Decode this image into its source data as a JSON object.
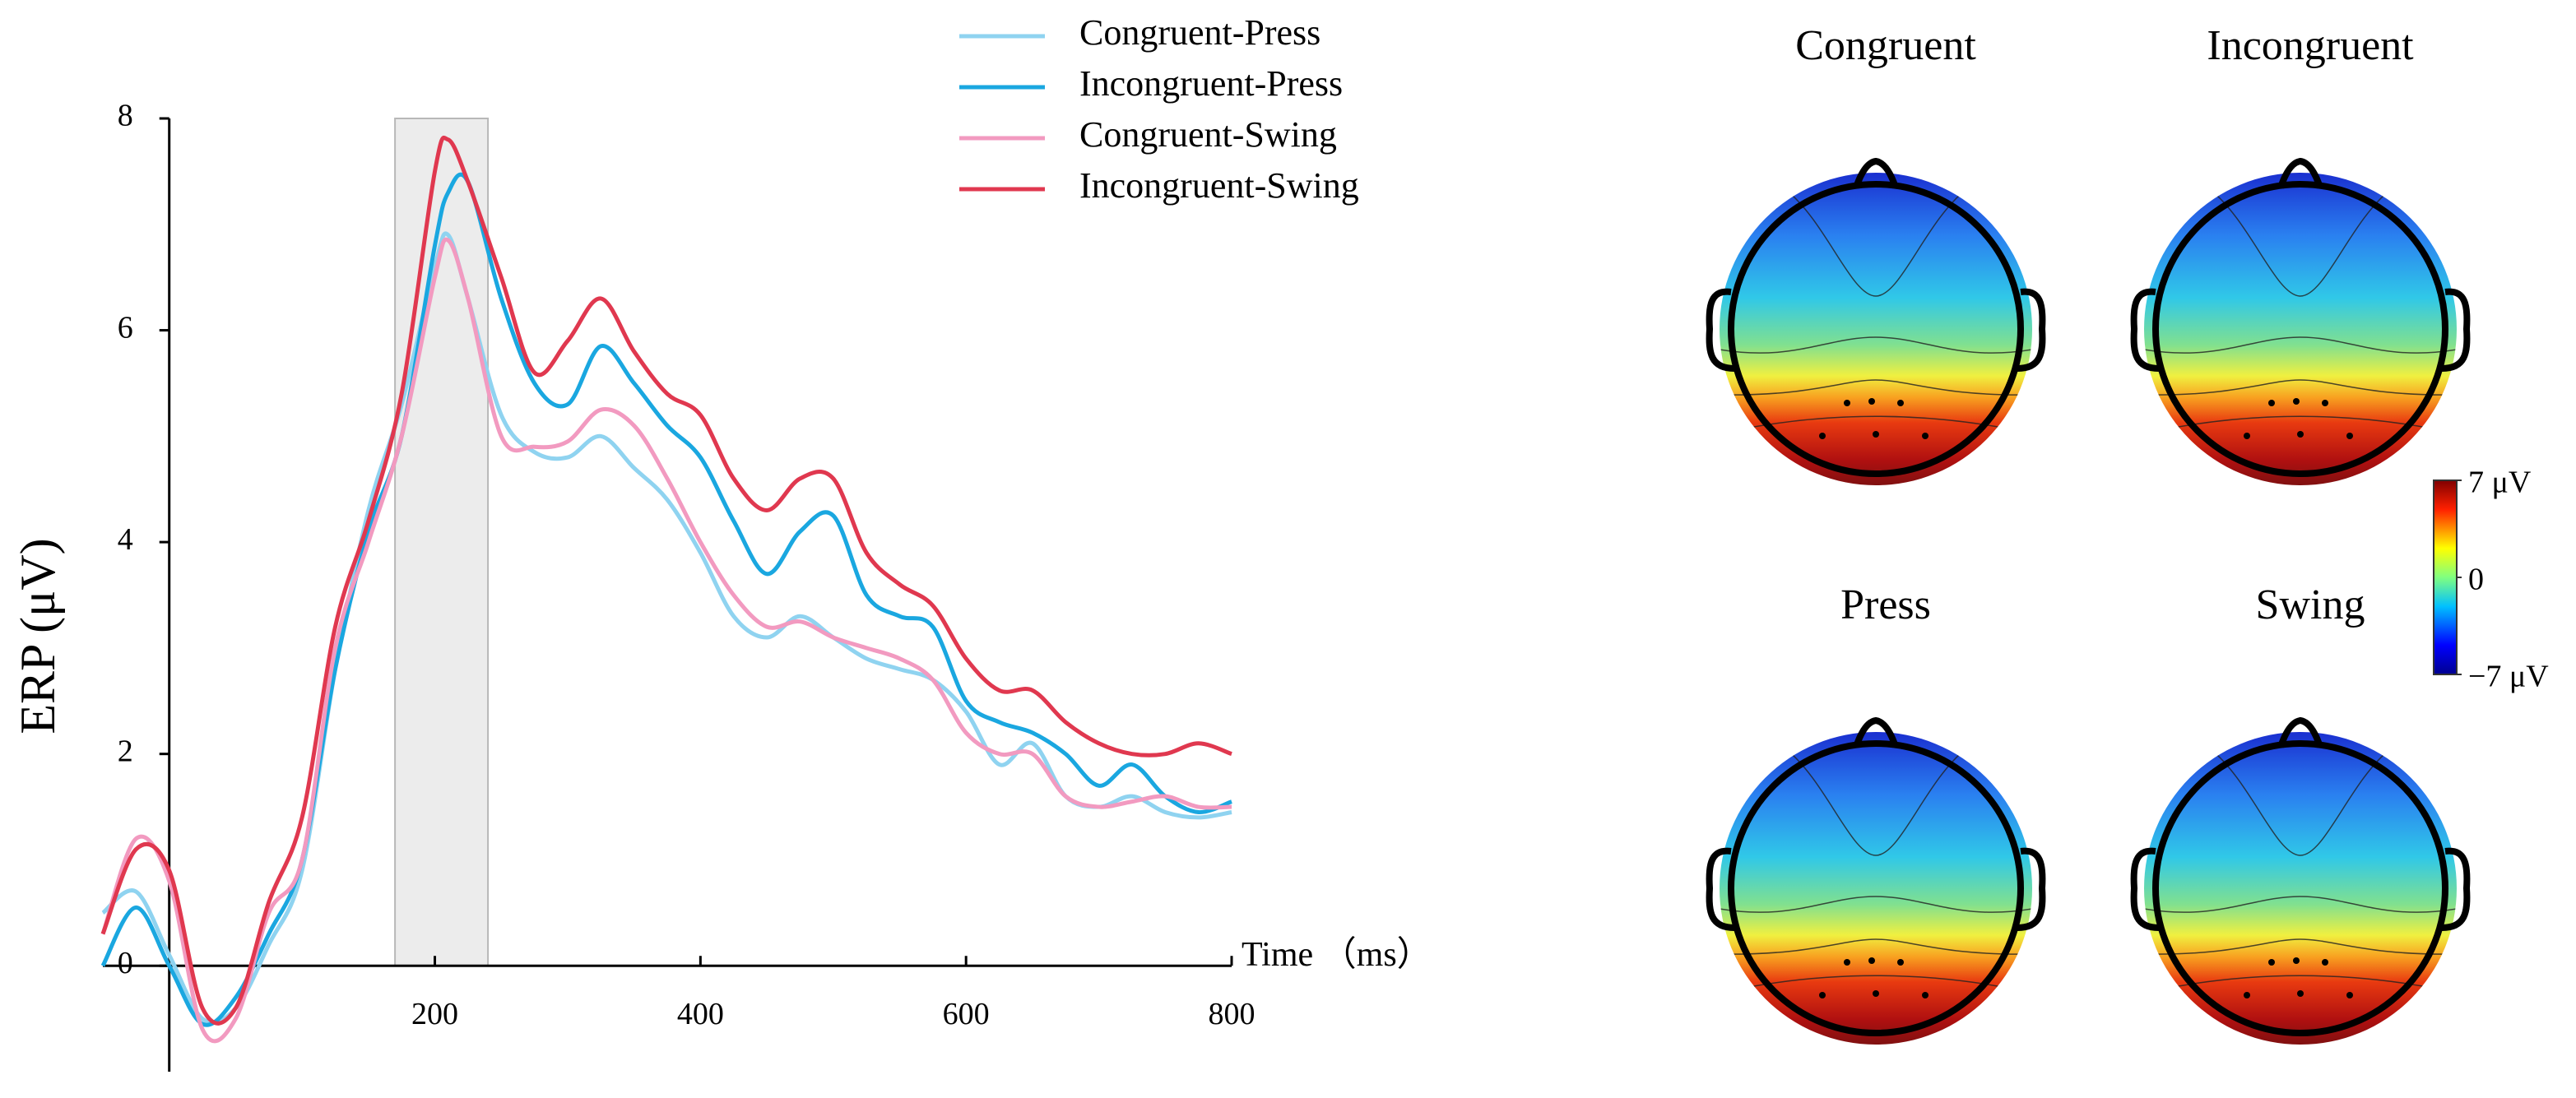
{
  "chart_data": [
    {
      "type": "line",
      "y_label": "ERP (μV)",
      "x_label": "Time （ms）",
      "x": [
        -50,
        -25,
        0,
        25,
        50,
        75,
        100,
        125,
        150,
        175,
        200,
        210,
        225,
        250,
        275,
        300,
        325,
        350,
        375,
        400,
        425,
        450,
        475,
        500,
        525,
        550,
        575,
        600,
        625,
        650,
        675,
        700,
        725,
        750,
        775,
        800
      ],
      "series": [
        {
          "name": "Congruent-Press",
          "color": "#8fd3f0",
          "values": [
            0.5,
            0.7,
            0.1,
            -0.5,
            -0.4,
            0.2,
            0.9,
            2.8,
            4.3,
            5.3,
            6.6,
            6.9,
            6.3,
            5.2,
            4.85,
            4.8,
            5.0,
            4.7,
            4.4,
            3.9,
            3.3,
            3.1,
            3.3,
            3.1,
            2.9,
            2.8,
            2.7,
            2.4,
            1.9,
            2.1,
            1.6,
            1.5,
            1.6,
            1.45,
            1.4,
            1.45
          ]
        },
        {
          "name": "Incongruent-Press",
          "color": "#1aa7e0",
          "values": [
            0.0,
            0.55,
            0.0,
            -0.55,
            -0.3,
            0.3,
            1.0,
            2.8,
            4.1,
            5.0,
            6.8,
            7.3,
            7.4,
            6.3,
            5.5,
            5.3,
            5.85,
            5.5,
            5.1,
            4.8,
            4.2,
            3.7,
            4.1,
            4.25,
            3.5,
            3.3,
            3.2,
            2.5,
            2.3,
            2.2,
            2.0,
            1.7,
            1.9,
            1.6,
            1.45,
            1.55
          ]
        },
        {
          "name": "Congruent-Swing",
          "color": "#f29ac0",
          "values": [
            0.3,
            1.2,
            0.8,
            -0.6,
            -0.5,
            0.5,
            1.0,
            3.0,
            4.0,
            5.0,
            6.5,
            6.85,
            6.3,
            5.0,
            4.9,
            4.95,
            5.25,
            5.1,
            4.6,
            4.0,
            3.5,
            3.2,
            3.25,
            3.1,
            3.0,
            2.9,
            2.7,
            2.2,
            2.0,
            2.0,
            1.6,
            1.5,
            1.55,
            1.6,
            1.5,
            1.5
          ]
        },
        {
          "name": "Incongruent-Swing",
          "color": "#e0384f",
          "values": [
            0.3,
            1.1,
            0.9,
            -0.4,
            -0.4,
            0.6,
            1.4,
            3.2,
            4.2,
            5.4,
            7.5,
            7.8,
            7.4,
            6.5,
            5.6,
            5.9,
            6.3,
            5.8,
            5.4,
            5.2,
            4.6,
            4.3,
            4.6,
            4.6,
            3.9,
            3.6,
            3.4,
            2.9,
            2.6,
            2.6,
            2.3,
            2.1,
            2.0,
            2.0,
            2.1,
            2.0
          ]
        }
      ],
      "xlim": [
        -50,
        800
      ],
      "xticks": [
        200,
        400,
        600,
        800
      ],
      "ylim": [
        -1,
        8
      ],
      "yticks": [
        0,
        2,
        4,
        6,
        8
      ],
      "highlight_x": [
        170,
        240
      ],
      "grid": false
    },
    {
      "type": "topomap",
      "panels": [
        "Congruent",
        "Incongruent",
        "Press",
        "Swing"
      ],
      "clim": [
        -7,
        7
      ],
      "colorbar_ticks": [
        {
          "value": 7,
          "label": "7 μV"
        },
        0,
        {
          "value": -7,
          "label": "−7 μV"
        }
      ]
    }
  ]
}
